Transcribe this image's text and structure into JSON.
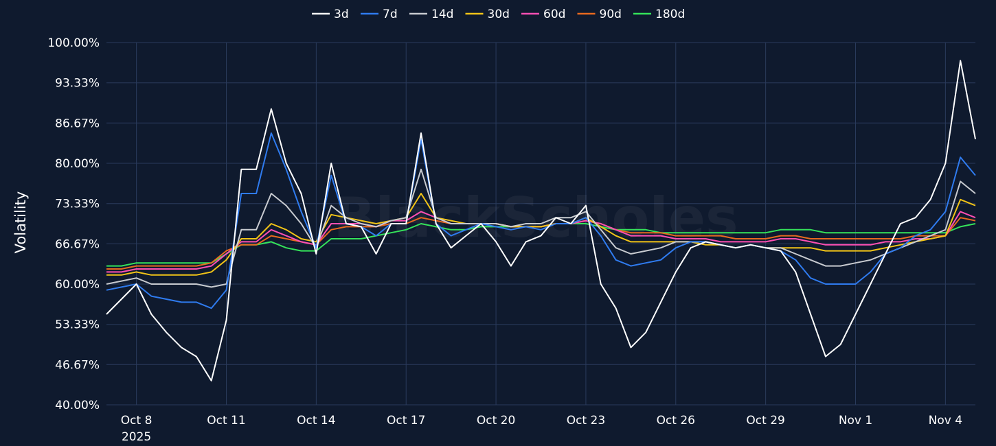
{
  "watermark": "BlackScholes",
  "chart_data": {
    "type": "line",
    "ylabel": "Volatility",
    "xlabel": "",
    "ylim": [
      40,
      100
    ],
    "yticks": [
      "100.00%",
      "93.33%",
      "86.67%",
      "80.00%",
      "73.33%",
      "66.67%",
      "60.00%",
      "53.33%",
      "46.67%",
      "40.00%"
    ],
    "ytick_values": [
      100,
      93.33,
      86.67,
      80,
      73.33,
      66.67,
      60,
      53.33,
      46.67,
      40
    ],
    "xlim": [
      "2025-10-07",
      "2025-11-05"
    ],
    "xticks": [
      {
        "date": "2025-10-08",
        "label": "Oct 8",
        "sublabel": "2025"
      },
      {
        "date": "2025-10-11",
        "label": "Oct 11"
      },
      {
        "date": "2025-10-14",
        "label": "Oct 14"
      },
      {
        "date": "2025-10-17",
        "label": "Oct 17"
      },
      {
        "date": "2025-10-20",
        "label": "Oct 20"
      },
      {
        "date": "2025-10-23",
        "label": "Oct 23"
      },
      {
        "date": "2025-10-26",
        "label": "Oct 26"
      },
      {
        "date": "2025-10-29",
        "label": "Oct 29"
      },
      {
        "date": "2025-11-01",
        "label": "Nov 1"
      },
      {
        "date": "2025-11-04",
        "label": "Nov 4"
      }
    ],
    "grid": true,
    "legend_position": "top-center",
    "x": [
      "2025-10-07",
      "2025-10-07T12",
      "2025-10-08",
      "2025-10-08T12",
      "2025-10-09",
      "2025-10-09T12",
      "2025-10-10",
      "2025-10-10T12",
      "2025-10-11",
      "2025-10-11T12",
      "2025-10-12",
      "2025-10-12T12",
      "2025-10-13",
      "2025-10-13T12",
      "2025-10-14",
      "2025-10-14T12",
      "2025-10-15",
      "2025-10-15T12",
      "2025-10-16",
      "2025-10-16T12",
      "2025-10-17",
      "2025-10-17T12",
      "2025-10-18",
      "2025-10-18T12",
      "2025-10-19",
      "2025-10-19T12",
      "2025-10-20",
      "2025-10-20T12",
      "2025-10-21",
      "2025-10-21T12",
      "2025-10-22",
      "2025-10-22T12",
      "2025-10-23",
      "2025-10-23T12",
      "2025-10-24",
      "2025-10-24T12",
      "2025-10-25",
      "2025-10-25T12",
      "2025-10-26",
      "2025-10-26T12",
      "2025-10-27",
      "2025-10-27T12",
      "2025-10-28",
      "2025-10-28T12",
      "2025-10-29",
      "2025-10-29T12",
      "2025-10-30",
      "2025-10-30T12",
      "2025-10-31",
      "2025-10-31T12",
      "2025-11-01",
      "2025-11-01T12",
      "2025-11-02",
      "2025-11-02T12",
      "2025-11-03",
      "2025-11-03T12",
      "2025-11-04",
      "2025-11-04T12",
      "2025-11-05"
    ],
    "series": [
      {
        "name": "3d",
        "color": "#ffffff",
        "values": [
          55,
          57.5,
          60,
          55,
          52,
          49.5,
          48,
          44,
          54,
          79,
          79,
          89,
          80,
          75,
          65,
          80,
          70,
          69.5,
          65,
          70,
          70,
          85,
          70,
          66,
          68,
          70,
          67,
          63,
          67,
          68,
          71,
          70,
          73,
          60,
          56,
          49.5,
          52,
          57,
          62,
          66,
          67,
          66.5,
          66,
          66.5,
          66,
          65.5,
          62,
          55,
          48,
          50,
          55,
          60,
          65,
          70,
          71,
          74,
          80,
          97,
          84
        ]
      },
      {
        "name": "7d",
        "color": "#2f7bef",
        "values": [
          59,
          59.5,
          60,
          58,
          57.5,
          57,
          57,
          56,
          59,
          75,
          75,
          85,
          79,
          72,
          66,
          78,
          70,
          69.5,
          68,
          70,
          70,
          84,
          70,
          68,
          69,
          70,
          69.5,
          69,
          69.5,
          69,
          70,
          70,
          71,
          68,
          64,
          63,
          63.5,
          64,
          66,
          67,
          67,
          66.5,
          66,
          66.5,
          66,
          65.5,
          64,
          61,
          60,
          60,
          60,
          62,
          65,
          66,
          68,
          69,
          72,
          81,
          78
        ]
      },
      {
        "name": "14d",
        "color": "#c8cbd0",
        "values": [
          60,
          60.5,
          61,
          60,
          60,
          60,
          60,
          59.5,
          60,
          69,
          69,
          75,
          73,
          70,
          66,
          73,
          71,
          70,
          69.5,
          70.5,
          71,
          79,
          71,
          70,
          70,
          70,
          70,
          69.5,
          70,
          70,
          71,
          71,
          72,
          69,
          66,
          65,
          65.5,
          66,
          67,
          67,
          67,
          66.5,
          66,
          66.5,
          66,
          66,
          65,
          64,
          63,
          63,
          63.5,
          64,
          65,
          66,
          67,
          68,
          69,
          77,
          75
        ]
      },
      {
        "name": "30d",
        "color": "#f2c417",
        "values": [
          61.5,
          61.5,
          62,
          61.5,
          61.5,
          61.5,
          61.5,
          62,
          64,
          67.5,
          67.5,
          70,
          69,
          67.5,
          67,
          71.5,
          71,
          70.5,
          70,
          70.5,
          71,
          75,
          71,
          70.5,
          70,
          70,
          70,
          69.5,
          69.5,
          69.5,
          70,
          70,
          71,
          69.5,
          68,
          67,
          67,
          67,
          67,
          67,
          66.5,
          66.5,
          66,
          66.5,
          66,
          66,
          66,
          66,
          65.5,
          65.5,
          65.5,
          65.5,
          66,
          66.5,
          67,
          67.5,
          68,
          74,
          73
        ]
      },
      {
        "name": "60d",
        "color": "#ff4fb3",
        "values": [
          62,
          62,
          62.5,
          62.5,
          62.5,
          62.5,
          62.5,
          63,
          65,
          67,
          67,
          69,
          68,
          67,
          66.5,
          70,
          70,
          70,
          69.5,
          70.5,
          70.5,
          72,
          71,
          70,
          70,
          70,
          70,
          69.5,
          69.5,
          69.5,
          70,
          70,
          70.5,
          70,
          69,
          68,
          68,
          68,
          67.5,
          67.5,
          67.5,
          67,
          67,
          67,
          67,
          67.5,
          67.5,
          67,
          66.5,
          66.5,
          66.5,
          66.5,
          67,
          67,
          67.5,
          67.5,
          68,
          72,
          71
        ]
      },
      {
        "name": "90d",
        "color": "#e8691e",
        "values": [
          62.5,
          62.5,
          63,
          63,
          63,
          63,
          63,
          63.5,
          65.5,
          66.5,
          66.5,
          68,
          67.5,
          67,
          66.5,
          69,
          69.5,
          69.5,
          69.5,
          70,
          70,
          71,
          70.5,
          70,
          70,
          70,
          70,
          69.5,
          69.5,
          69.5,
          70,
          70,
          70.5,
          70,
          69,
          68.5,
          68.5,
          68.5,
          68,
          68,
          68,
          68,
          67.5,
          67.5,
          67.5,
          68,
          68,
          67.5,
          67.5,
          67.5,
          67.5,
          67.5,
          67.5,
          67.5,
          68,
          68,
          68,
          71,
          70.5
        ]
      },
      {
        "name": "180d",
        "color": "#35e35a",
        "values": [
          63,
          63,
          63.5,
          63.5,
          63.5,
          63.5,
          63.5,
          63.5,
          65,
          66.5,
          66.5,
          67,
          66,
          65.5,
          65.5,
          67.5,
          67.5,
          67.5,
          68,
          68.5,
          69,
          70,
          69.5,
          69,
          69,
          69.5,
          69.5,
          69.5,
          69.5,
          69.5,
          70,
          70,
          70,
          69.5,
          69,
          69,
          69,
          68.5,
          68.5,
          68.5,
          68.5,
          68.5,
          68.5,
          68.5,
          68.5,
          69,
          69,
          69,
          68.5,
          68.5,
          68.5,
          68.5,
          68.5,
          68.5,
          68.5,
          68.5,
          68.5,
          69.5,
          70
        ]
      }
    ]
  }
}
